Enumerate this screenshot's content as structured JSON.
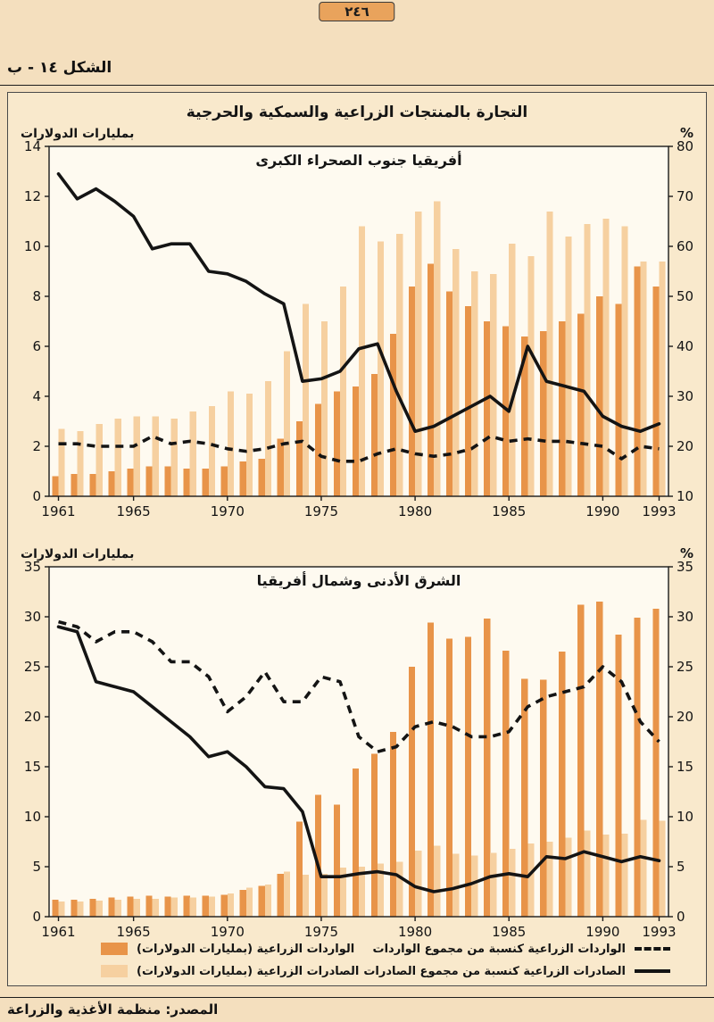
{
  "page": {
    "page_number": "٢٤٦",
    "figure_label": "الشكل ١٤ - ب",
    "panel_title": "التجارة بالمنتجات الزراعية والسمكية والحرجية",
    "source": "المصدر: منظمة الأغذية والزراعة"
  },
  "colors": {
    "page_bg": "#f4dfbe",
    "panel_bg": "#f9e9cc",
    "plot_bg": "#fefaf0",
    "imports_bar": "#e89449",
    "exports_bar": "#f6d0a0",
    "line": "#141414"
  },
  "legend": {
    "imports_bar_label": "الواردات الزراعية (بمليارات الدولارات)",
    "exports_bar_label": "الصادرات الزراعية (بمليارات الدولارات)",
    "imports_line_label": "الواردات الزراعية كنسبة من مجموع الواردات",
    "exports_line_label": "الصادرات الزراعية كنسبة من مجموع الصادرات"
  },
  "chart_data": [
    {
      "type": "bar+line",
      "title": "أفريقيا جنوب الصحراء الكبرى",
      "left_axis_label": "بمليارات الدولارات",
      "right_axis_label": "%",
      "x": [
        1961,
        1962,
        1963,
        1964,
        1965,
        1966,
        1967,
        1968,
        1969,
        1970,
        1971,
        1972,
        1973,
        1974,
        1975,
        1976,
        1977,
        1978,
        1979,
        1980,
        1981,
        1982,
        1983,
        1984,
        1985,
        1986,
        1987,
        1988,
        1989,
        1990,
        1991,
        1992,
        1993
      ],
      "x_tick_labels": [
        1961,
        1965,
        1970,
        1975,
        1980,
        1985,
        1990,
        1993
      ],
      "left_ylim": [
        0,
        14
      ],
      "left_ticks": [
        0,
        2,
        4,
        6,
        8,
        10,
        12,
        14
      ],
      "right_ylim": [
        10,
        80
      ],
      "right_ticks": [
        10,
        20,
        30,
        40,
        50,
        60,
        70,
        80
      ],
      "series": [
        {
          "name": "الواردات الزراعية (بمليارات الدولارات)",
          "axis": "left",
          "style": "bar-dark",
          "values": [
            0.8,
            0.9,
            0.9,
            1.0,
            1.1,
            1.2,
            1.2,
            1.1,
            1.1,
            1.2,
            1.4,
            1.5,
            2.3,
            3.0,
            3.7,
            4.2,
            4.4,
            4.9,
            6.5,
            8.4,
            9.3,
            8.2,
            7.6,
            7.0,
            6.8,
            6.4,
            6.6,
            7.0,
            7.3,
            8.0,
            7.7,
            9.2,
            8.4
          ]
        },
        {
          "name": "الصادرات الزراعية (بمليارات الدولارات)",
          "axis": "left",
          "style": "bar-light",
          "values": [
            2.7,
            2.6,
            2.9,
            3.1,
            3.2,
            3.2,
            3.1,
            3.4,
            3.6,
            4.2,
            4.1,
            4.6,
            5.8,
            7.7,
            7.0,
            8.4,
            10.8,
            10.2,
            10.5,
            11.4,
            11.8,
            9.9,
            9.0,
            8.9,
            10.1,
            9.6,
            11.4,
            10.4,
            10.9,
            11.1,
            10.8,
            9.4,
            9.4
          ]
        },
        {
          "name": "الواردات الزراعية كنسبة من مجموع الواردات",
          "axis": "right",
          "style": "line-dashed",
          "values": [
            20.5,
            20.5,
            20,
            20,
            20,
            22,
            20.5,
            21,
            20.5,
            19.5,
            19,
            19.5,
            20.5,
            21,
            18,
            17,
            17,
            18.5,
            19.5,
            18.5,
            18,
            18.5,
            19.5,
            22,
            21,
            21.5,
            21,
            21,
            20.5,
            20,
            17.5,
            20,
            19.5
          ]
        },
        {
          "name": "الصادرات الزراعية كنسبة من مجموع الصادرات",
          "axis": "right",
          "style": "line-solid",
          "values": [
            74.5,
            69.5,
            71.5,
            69,
            66,
            59.5,
            60.5,
            60.5,
            55,
            54.5,
            53,
            50.5,
            48.5,
            33,
            33.5,
            35,
            39.5,
            40.5,
            31,
            23,
            24,
            26,
            28,
            30,
            27,
            40,
            33,
            32,
            31,
            26,
            24,
            23,
            24.5
          ]
        }
      ]
    },
    {
      "type": "bar+line",
      "title": "الشرق الأدنى وشمال أفريقيا",
      "left_axis_label": "بمليارات الدولارات",
      "right_axis_label": "%",
      "x": [
        1961,
        1962,
        1963,
        1964,
        1965,
        1966,
        1967,
        1968,
        1969,
        1970,
        1971,
        1972,
        1973,
        1974,
        1975,
        1976,
        1977,
        1978,
        1979,
        1980,
        1981,
        1982,
        1983,
        1984,
        1985,
        1986,
        1987,
        1988,
        1989,
        1990,
        1991,
        1992,
        1993
      ],
      "x_tick_labels": [
        1961,
        1965,
        1970,
        1975,
        1980,
        1985,
        1990,
        1993
      ],
      "left_ylim": [
        0,
        35
      ],
      "left_ticks": [
        0,
        5,
        10,
        15,
        20,
        25,
        30,
        35
      ],
      "right_ylim": [
        0,
        35
      ],
      "right_ticks": [
        0,
        5,
        10,
        15,
        20,
        25,
        30,
        35
      ],
      "series": [
        {
          "name": "الواردات الزراعية (بمليارات الدولارات)",
          "axis": "left",
          "style": "bar-dark",
          "values": [
            1.7,
            1.7,
            1.8,
            1.9,
            2.0,
            2.1,
            2.0,
            2.1,
            2.1,
            2.2,
            2.7,
            3.1,
            4.3,
            9.5,
            12.2,
            11.2,
            14.8,
            16.3,
            18.5,
            25.0,
            29.4,
            27.8,
            28.0,
            29.8,
            26.6,
            23.8,
            23.7,
            26.5,
            31.2,
            31.5,
            28.2,
            29.9,
            30.8
          ]
        },
        {
          "name": "الصادرات الزراعية (بمليارات الدولارات)",
          "axis": "left",
          "style": "bar-light",
          "values": [
            1.5,
            1.5,
            1.6,
            1.7,
            1.8,
            1.8,
            1.9,
            1.9,
            2.0,
            2.3,
            2.9,
            3.2,
            4.5,
            4.2,
            4.3,
            4.9,
            5.0,
            5.3,
            5.5,
            6.6,
            7.1,
            6.3,
            6.1,
            6.4,
            6.8,
            7.3,
            7.5,
            7.9,
            8.6,
            8.2,
            8.3,
            9.7,
            9.6
          ]
        },
        {
          "name": "الواردات الزراعية كنسبة من مجموع الواردات",
          "axis": "right",
          "style": "line-dashed",
          "values": [
            29.5,
            29,
            27.5,
            28.5,
            28.5,
            27.5,
            25.5,
            25.5,
            24,
            20.5,
            22,
            24.5,
            21.5,
            21.5,
            24,
            23.5,
            18,
            16.5,
            17,
            19,
            19.5,
            19,
            18,
            18,
            18.5,
            21,
            22,
            22.5,
            23,
            25,
            23.5,
            19.5,
            17.5
          ]
        },
        {
          "name": "الصادرات الزراعية كنسبة من مجموع الصادرات",
          "axis": "right",
          "style": "line-solid",
          "values": [
            29,
            28.5,
            23.5,
            23,
            22.5,
            21,
            19.5,
            18,
            16,
            16.5,
            15,
            13,
            12.8,
            10.5,
            4,
            4,
            4.3,
            4.5,
            4.2,
            3,
            2.5,
            2.8,
            3.3,
            4,
            4.3,
            4,
            6,
            5.8,
            6.5,
            6,
            5.5,
            6,
            5.6
          ]
        }
      ]
    }
  ]
}
